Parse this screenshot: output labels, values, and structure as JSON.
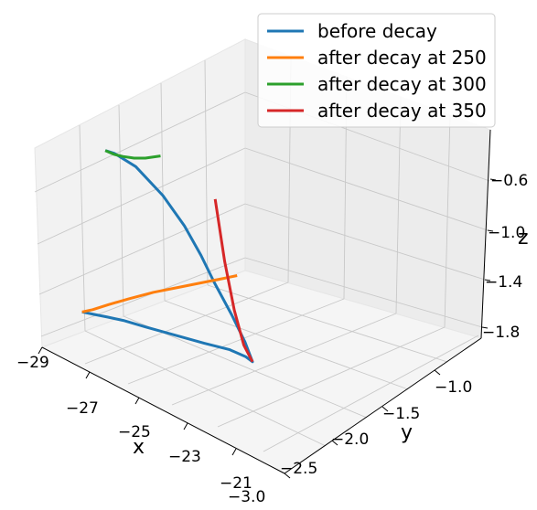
{
  "chart_data": {
    "type": "line3d",
    "xlabel": "x",
    "ylabel": "y",
    "zlabel": "z",
    "x_ticks": [
      "−29",
      "−27",
      "−25",
      "−23",
      "−21"
    ],
    "y_ticks": [
      "−1.0",
      "−1.5",
      "−2.0",
      "−2.5",
      "−3.0"
    ],
    "z_ticks": [
      "−0.6",
      "−1.0",
      "−1.4",
      "−1.8"
    ],
    "xlim": [
      -29,
      -20
    ],
    "ylim": [
      -3.0,
      -0.6
    ],
    "zlim": [
      -1.9,
      -0.5
    ],
    "grid": true,
    "legend": "top-right",
    "series": [
      {
        "name": "before decay",
        "color": "#1f77b4",
        "x": [
          -28.6,
          -28.3,
          -28.0,
          -27.6,
          -27.0,
          -26.2,
          -25.4,
          -24.7,
          -24.2,
          -24.0,
          -24.2,
          -24.6,
          -25.1,
          -25.5,
          -26.0,
          -26.7,
          -27.6,
          -28.3,
          -28.6
        ],
        "y": [
          -0.94,
          -1.0,
          -1.06,
          -1.13,
          -1.22,
          -1.33,
          -1.44,
          -1.53,
          -1.58,
          -1.6,
          -1.57,
          -1.53,
          -1.47,
          -1.43,
          -1.38,
          -1.33,
          -1.27,
          -1.22,
          -1.2
        ],
        "z": [
          -1.79,
          -1.8,
          -1.81,
          -1.82,
          -1.84,
          -1.86,
          -1.88,
          -1.89,
          -1.91,
          -1.93,
          -1.82,
          -1.68,
          -1.51,
          -1.37,
          -1.22,
          -1.08,
          -0.96,
          -0.92,
          -0.92
        ]
      },
      {
        "name": "after decay at 250",
        "color": "#ff7f0e",
        "x": [
          -28.6,
          -28.2,
          -27.6,
          -26.8,
          -25.8,
          -24.8,
          -23.8,
          -23.0,
          -22.5
        ],
        "y": [
          -0.94,
          -0.95,
          -0.96,
          -0.97,
          -0.98,
          -0.99,
          -1.0,
          -1.01,
          -1.02
        ],
        "z": [
          -1.79,
          -1.75,
          -1.68,
          -1.59,
          -1.48,
          -1.38,
          -1.28,
          -1.2,
          -1.15
        ]
      },
      {
        "name": "after decay at 300",
        "color": "#2ca02c",
        "x": [
          -28.6,
          -28.2,
          -27.8,
          -27.3,
          -26.8,
          -26.4,
          -26.1
        ],
        "y": [
          -1.2,
          -1.19,
          -1.18,
          -1.17,
          -1.16,
          -1.15,
          -1.14
        ],
        "z": [
          -0.92,
          -0.91,
          -0.89,
          -0.86,
          -0.82,
          -0.78,
          -0.75
        ]
      },
      {
        "name": "after decay at 350",
        "color": "#d62728",
        "x": [
          -24.0,
          -24.1,
          -24.2,
          -24.3,
          -24.4
        ],
        "y": [
          -1.6,
          -1.53,
          -1.45,
          -1.37,
          -1.29
        ],
        "z": [
          -1.93,
          -1.82,
          -1.6,
          -1.3,
          -0.92
        ]
      }
    ]
  }
}
